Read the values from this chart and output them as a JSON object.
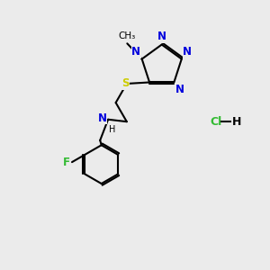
{
  "bg": "#ebebeb",
  "bc": "#000000",
  "Nc": "#0000dd",
  "Sc": "#cccc00",
  "Fc": "#33bb33",
  "Clc": "#33bb33",
  "lw": 1.5,
  "fs": 8.5,
  "figsize": [
    3.0,
    3.0
  ],
  "dpi": 100,
  "xlim": [
    0,
    10
  ],
  "ylim": [
    0,
    10
  ]
}
